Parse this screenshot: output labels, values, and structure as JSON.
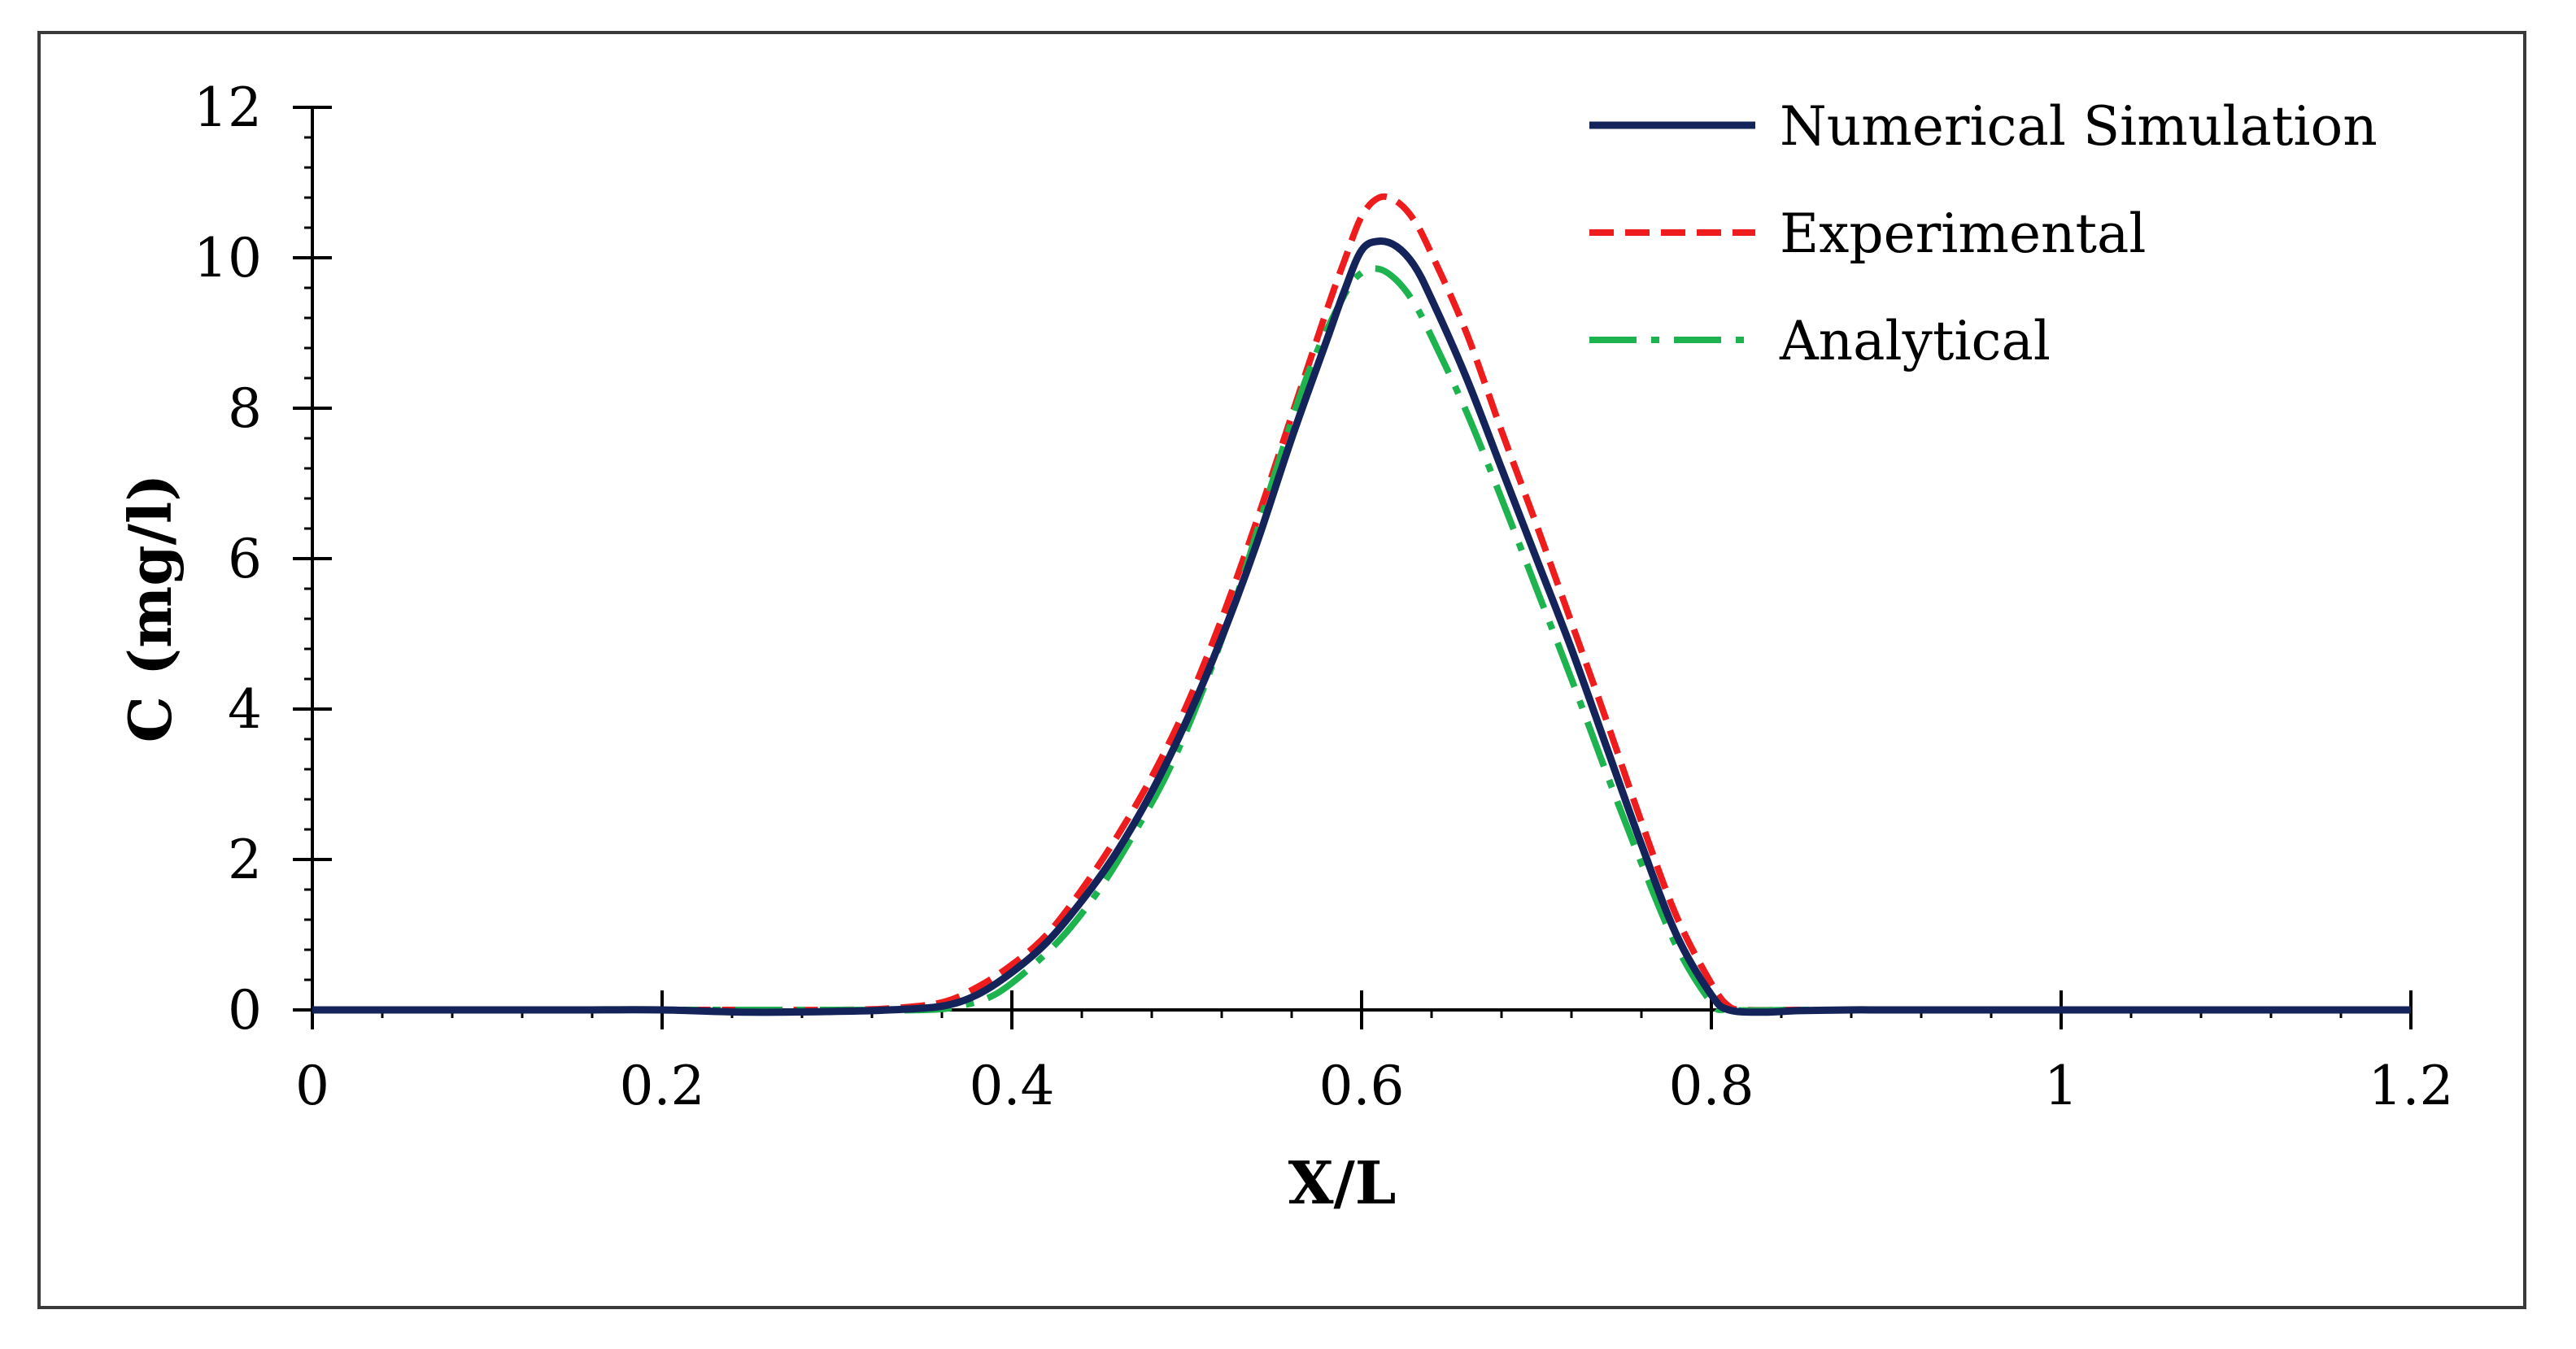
{
  "chart_data": {
    "type": "line",
    "title": "",
    "xlabel": "X/L",
    "ylabel": "C (mg/l)",
    "xlim": [
      0,
      1.2
    ],
    "ylim": [
      0,
      12
    ],
    "xticks": [
      0,
      0.2,
      0.4,
      0.6,
      0.8,
      1,
      1.2
    ],
    "xtick_labels": [
      "0",
      "0.2",
      "0.4",
      "0.6",
      "0.8",
      "1",
      "1.2"
    ],
    "yticks": [
      0,
      2,
      4,
      6,
      8,
      10,
      12
    ],
    "ytick_labels": [
      "0",
      "2",
      "4",
      "6",
      "8",
      "10",
      "12"
    ],
    "x_minor_step": 0.04,
    "y_minor_step": 0.4,
    "grid": false,
    "legend_position": "top-right",
    "series": [
      {
        "name": "Numerical Simulation",
        "color": "#14245a",
        "style": "solid",
        "x": [
          0,
          0.05,
          0.1,
          0.15,
          0.2,
          0.25,
          0.3,
          0.33,
          0.36,
          0.38,
          0.4,
          0.42,
          0.44,
          0.46,
          0.48,
          0.5,
          0.52,
          0.54,
          0.56,
          0.58,
          0.59,
          0.6,
          0.61,
          0.62,
          0.63,
          0.64,
          0.66,
          0.68,
          0.7,
          0.72,
          0.74,
          0.76,
          0.78,
          0.8,
          0.81,
          0.83,
          0.85,
          0.88,
          0.9,
          0.95,
          1.0,
          1.05,
          1.1,
          1.15,
          1.2
        ],
        "y": [
          0,
          0,
          0,
          0,
          0,
          -0.03,
          -0.02,
          0,
          0.05,
          0.2,
          0.5,
          0.9,
          1.45,
          2.1,
          2.9,
          3.85,
          4.95,
          6.2,
          7.6,
          8.9,
          9.55,
          10.1,
          10.22,
          10.15,
          9.9,
          9.45,
          8.4,
          7.2,
          6.0,
          4.8,
          3.5,
          2.2,
          1.0,
          0.2,
          0,
          -0.03,
          -0.01,
          0,
          0,
          0,
          0,
          0,
          0,
          0,
          0
        ]
      },
      {
        "name": "Experimental",
        "color": "#ee1c1c",
        "style": "dashed",
        "x": [
          0.05,
          0.1,
          0.15,
          0.2,
          0.25,
          0.3,
          0.33,
          0.36,
          0.38,
          0.4,
          0.42,
          0.44,
          0.46,
          0.48,
          0.5,
          0.52,
          0.54,
          0.56,
          0.58,
          0.59,
          0.6,
          0.61,
          0.62,
          0.63,
          0.64,
          0.66,
          0.68,
          0.7,
          0.72,
          0.74,
          0.76,
          0.78,
          0.8,
          0.81,
          0.82,
          0.85,
          0.9,
          0.95,
          1.0,
          1.05,
          1.1,
          1.15,
          1.2
        ],
        "y": [
          0,
          0,
          0,
          0,
          0,
          0,
          0.02,
          0.1,
          0.3,
          0.6,
          1.0,
          1.6,
          2.3,
          3.1,
          4.05,
          5.2,
          6.5,
          7.9,
          9.3,
          9.95,
          10.55,
          10.8,
          10.75,
          10.5,
          10.05,
          9.0,
          7.7,
          6.45,
          5.15,
          3.85,
          2.5,
          1.25,
          0.35,
          0.05,
          0,
          0,
          0,
          0,
          0,
          0,
          0,
          0,
          0
        ]
      },
      {
        "name": "Analytical",
        "color": "#1db34e",
        "style": "dashdot",
        "x": [
          0,
          0.05,
          0.1,
          0.15,
          0.2,
          0.25,
          0.3,
          0.35,
          0.37,
          0.39,
          0.41,
          0.43,
          0.45,
          0.47,
          0.49,
          0.51,
          0.53,
          0.55,
          0.57,
          0.59,
          0.6,
          0.61,
          0.62,
          0.63,
          0.64,
          0.66,
          0.68,
          0.7,
          0.72,
          0.74,
          0.76,
          0.78,
          0.8,
          0.81,
          0.85,
          0.9,
          0.95,
          1.0,
          1.05,
          1.1,
          1.15,
          1.2
        ],
        "y": [
          0,
          0,
          0,
          0,
          0,
          0,
          0,
          0,
          0.05,
          0.2,
          0.55,
          1.0,
          1.6,
          2.35,
          3.2,
          4.3,
          5.6,
          7.1,
          8.5,
          9.5,
          9.8,
          9.85,
          9.7,
          9.4,
          8.95,
          7.95,
          6.8,
          5.6,
          4.4,
          3.15,
          1.95,
          0.85,
          0.1,
          0,
          0,
          0,
          0,
          0,
          0,
          0,
          0,
          0
        ]
      }
    ]
  }
}
